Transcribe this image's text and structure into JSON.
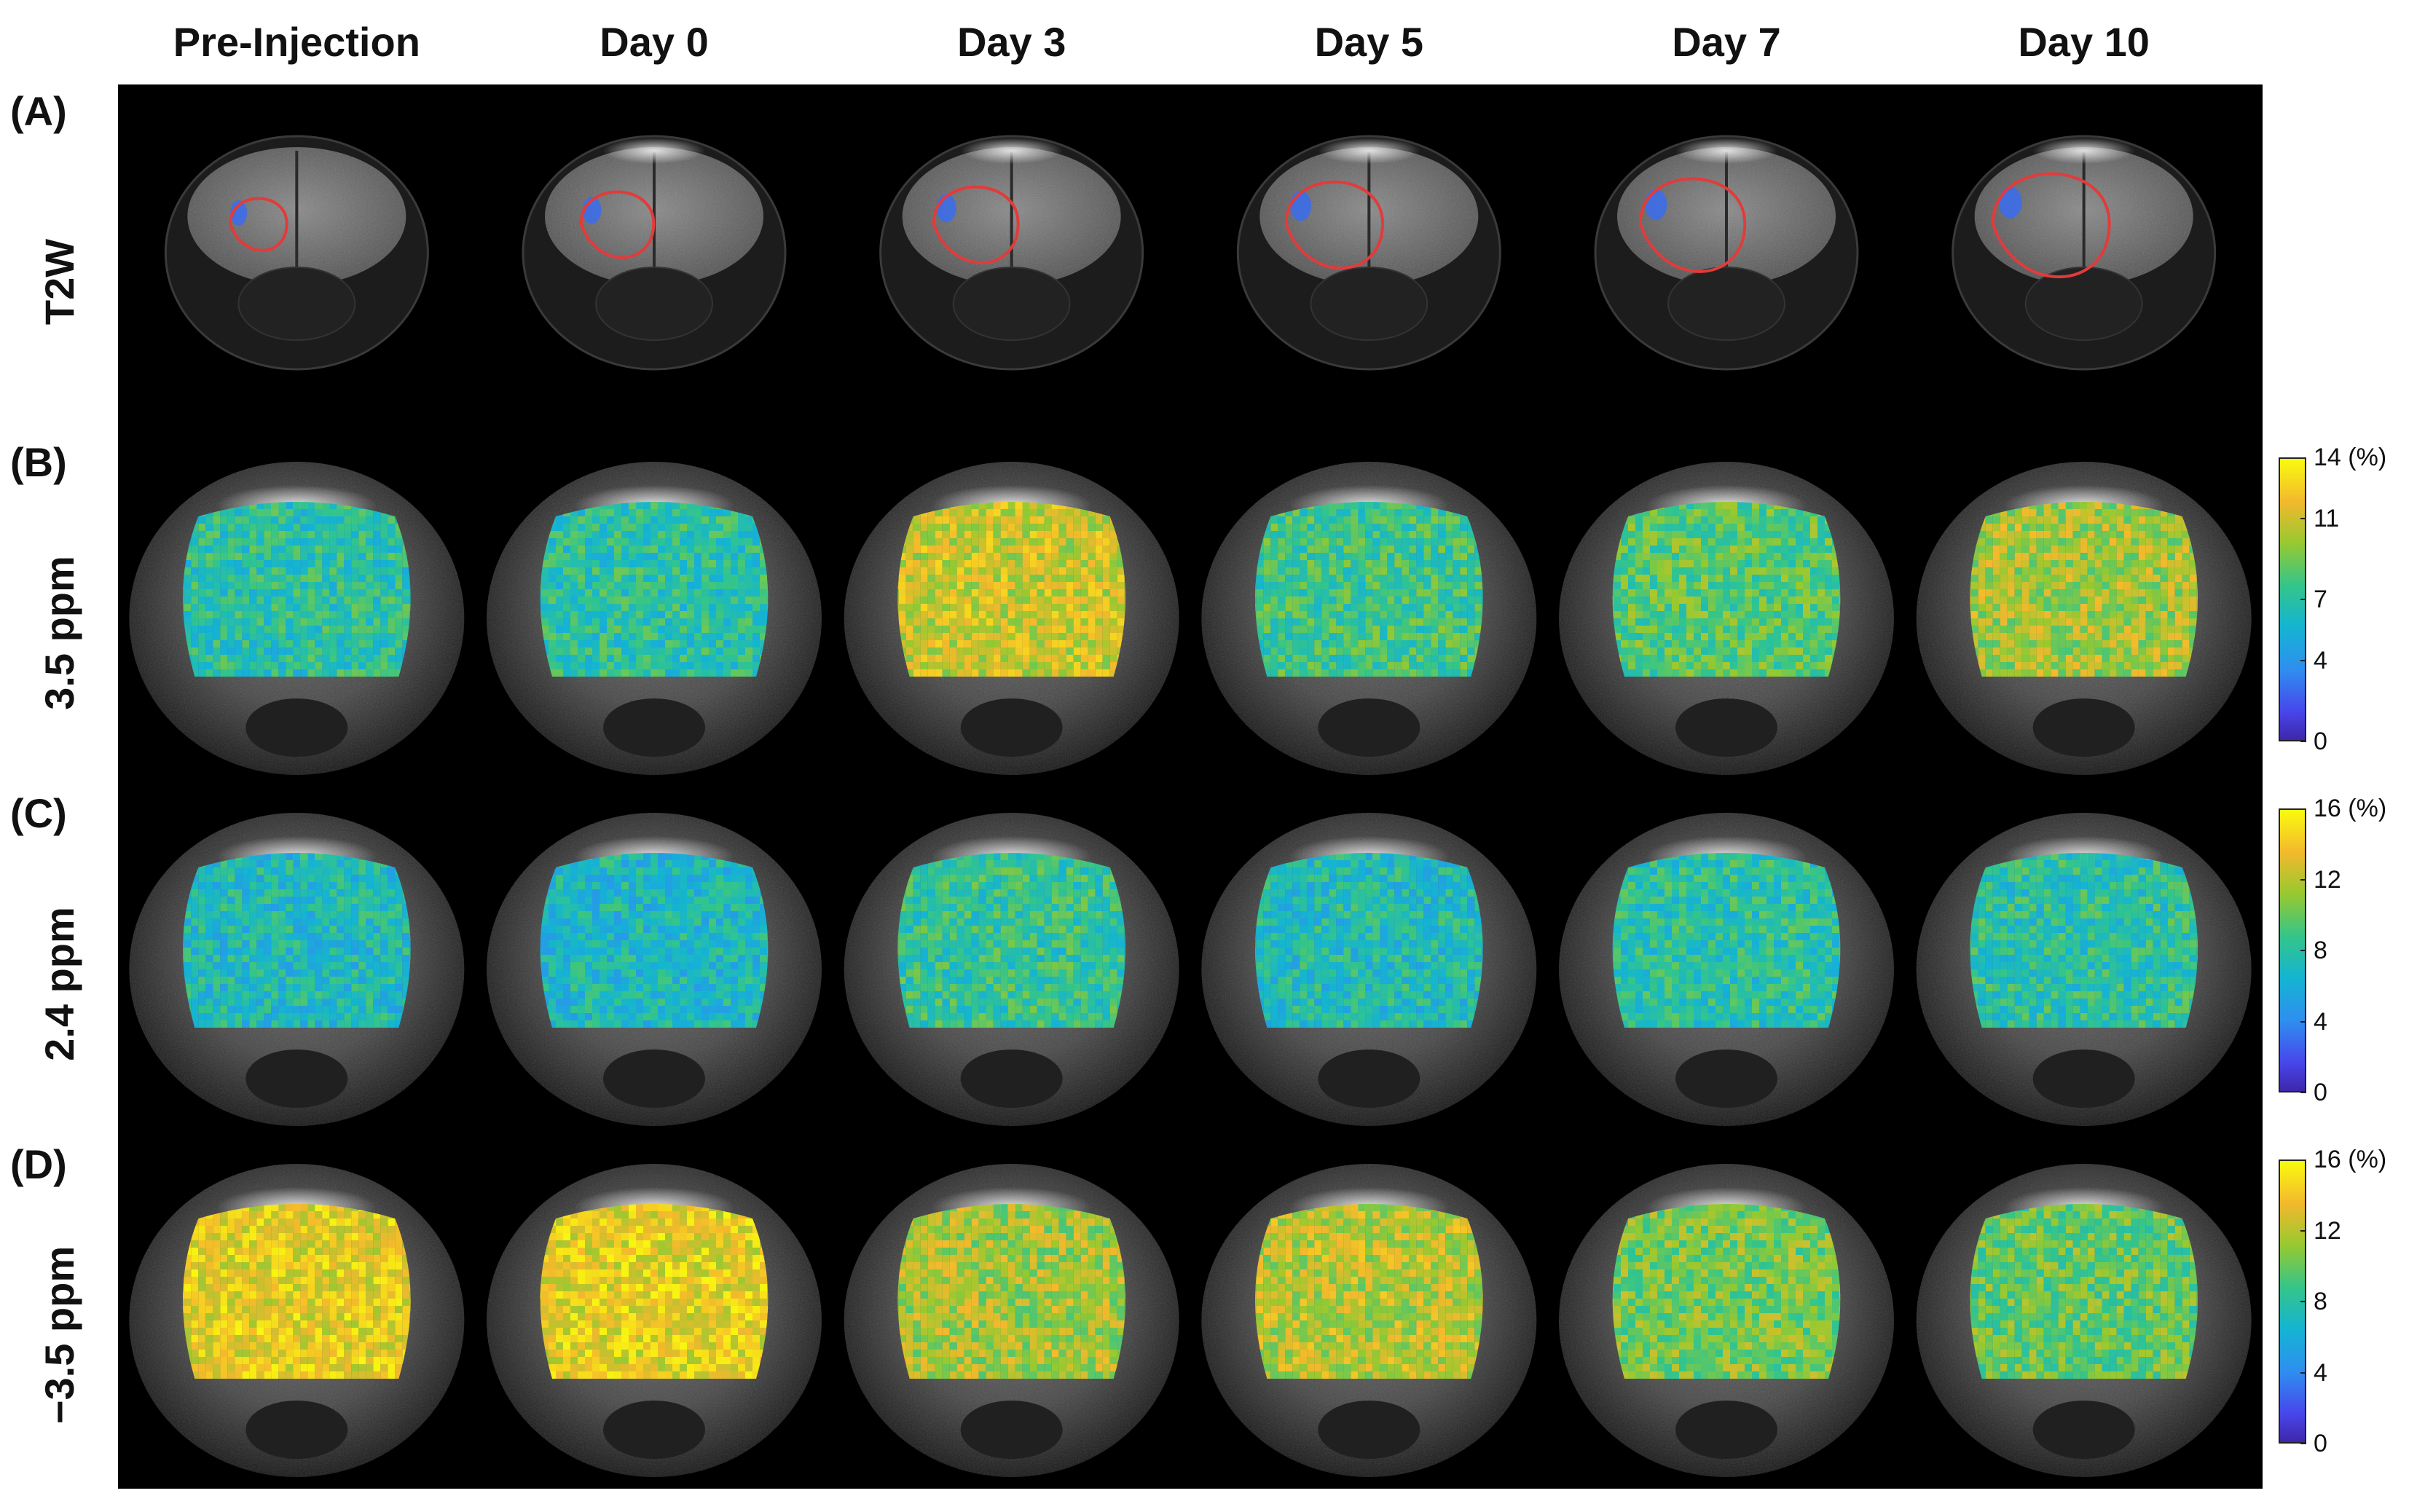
{
  "columns": [
    "Pre-Injection",
    "Day 0",
    "Day 3",
    "Day 5",
    "Day 7",
    "Day 10"
  ],
  "rows": [
    {
      "panel": "(A)",
      "label": "T2W",
      "type": "t2w"
    },
    {
      "panel": "(B)",
      "label": "3.5 ppm",
      "type": "map"
    },
    {
      "panel": "(C)",
      "label": "2.4 ppm",
      "type": "map"
    },
    {
      "panel": "(D)",
      "label": "−3.5 ppm",
      "type": "map"
    }
  ],
  "colorbars": [
    {
      "row": 1,
      "max_label": "14 (%)",
      "ticks": [
        "11",
        "7",
        "4",
        "0"
      ],
      "tick_values": [
        11,
        7,
        4,
        0
      ],
      "max": 14
    },
    {
      "row": 2,
      "max_label": "16 (%)",
      "ticks": [
        "12",
        "8",
        "4",
        "0"
      ],
      "tick_values": [
        12,
        8,
        4,
        0
      ],
      "max": 16
    },
    {
      "row": 3,
      "max_label": "16 (%)",
      "ticks": [
        "12",
        "8",
        "4",
        "0"
      ],
      "tick_values": [
        12,
        8,
        4,
        0
      ],
      "max": 16
    }
  ],
  "map_levels": [
    [
      0.5,
      0.5,
      0.78,
      0.55,
      0.6,
      0.72
    ],
    [
      0.45,
      0.44,
      0.52,
      0.46,
      0.5,
      0.5
    ],
    [
      0.85,
      0.85,
      0.72,
      0.75,
      0.65,
      0.62
    ]
  ],
  "tumor_relative_size": [
    0.25,
    0.45,
    0.6,
    0.75,
    0.85,
    1.0
  ],
  "colors": {
    "contour": "#e23b3b",
    "needle_track": "#3a6cf0",
    "background": "#000000"
  }
}
